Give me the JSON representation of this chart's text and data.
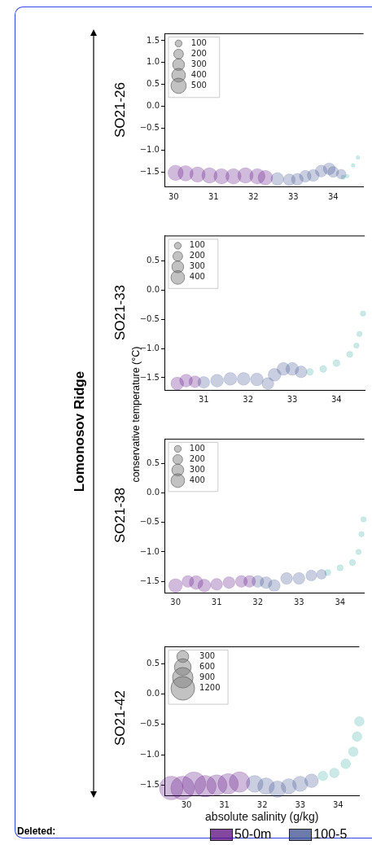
{
  "chart_data": [
    {
      "type": "bubble",
      "title": "SO21-26",
      "annotations": [
        "Lomonosov Ridge"
      ],
      "size_legend": [
        100,
        200,
        300,
        400,
        500
      ],
      "xlim": [
        29.77,
        34.76
      ],
      "xticks": [
        30,
        31,
        32,
        33,
        34
      ],
      "ylim": [
        -1.85,
        1.66
      ],
      "yticks": [
        {
          "value": -1.5,
          "label": "−1.5"
        },
        {
          "value": -1,
          "label": "−1.0"
        },
        {
          "value": -0.5,
          "label": "−0.5"
        },
        {
          "value": 0,
          "label": "0.0"
        },
        {
          "value": 0.5,
          "label": "0.5"
        },
        {
          "value": 1,
          "label": "1.0"
        },
        {
          "value": 1.5,
          "label": "1.5"
        }
      ],
      "series": [
        {
          "color": "#5b0a80",
          "x": [
            30.05,
            30.3,
            30.6,
            30.9,
            31.2,
            31.5,
            31.8,
            32.1,
            32.3
          ],
          "values": [
            -1.52,
            -1.53,
            -1.56,
            -1.58,
            -1.6,
            -1.6,
            -1.58,
            -1.6,
            -1.63
          ],
          "sizes": [
            500,
            500,
            500,
            500,
            500,
            500,
            500,
            500,
            450
          ]
        },
        {
          "color": "#3c4f8e",
          "x": [
            32.6,
            32.9,
            33.1,
            33.3,
            33.5,
            33.7,
            33.9,
            34.0,
            34.2
          ],
          "values": [
            -1.66,
            -1.68,
            -1.67,
            -1.6,
            -1.58,
            -1.48,
            -1.43,
            -1.5,
            -1.55
          ],
          "sizes": [
            350,
            300,
            300,
            300,
            300,
            300,
            300,
            250,
            200
          ]
        },
        {
          "color": "#45b5a8",
          "x": [
            34.25,
            34.35,
            34.5,
            34.62
          ],
          "values": [
            -1.62,
            -1.6,
            -1.35,
            -1.17
          ],
          "sizes": [
            40,
            30,
            30,
            30
          ]
        }
      ]
    },
    {
      "type": "bubble",
      "title": "SO21-33",
      "ylabel": "conservative temperature (°C)",
      "size_legend": [
        100,
        200,
        300,
        400
      ],
      "xlim": [
        30.11,
        34.64
      ],
      "xticks": [
        31,
        32,
        33,
        34
      ],
      "ylim": [
        -1.71,
        0.93
      ],
      "yticks": [
        {
          "value": -1.5,
          "label": "−1.5"
        },
        {
          "value": -1,
          "label": "−1.0"
        },
        {
          "value": -0.5,
          "label": "−0.5"
        },
        {
          "value": 0,
          "label": "0.0"
        },
        {
          "value": 0.5,
          "label": "0.5"
        }
      ],
      "series": [
        {
          "color": "#5b0a80",
          "x": [
            30.4,
            30.6,
            30.8
          ],
          "values": [
            -1.6,
            -1.55,
            -1.57
          ],
          "sizes": [
            350,
            350,
            300
          ]
        },
        {
          "color": "#3c4f8e",
          "x": [
            31.0,
            31.3,
            31.6,
            31.9,
            32.2,
            32.45,
            32.6,
            32.8,
            33.0,
            33.2
          ],
          "values": [
            -1.58,
            -1.55,
            -1.52,
            -1.52,
            -1.53,
            -1.6,
            -1.45,
            -1.35,
            -1.35,
            -1.4
          ],
          "sizes": [
            300,
            350,
            350,
            350,
            350,
            300,
            350,
            350,
            350,
            300
          ]
        },
        {
          "color": "#45b5a8",
          "x": [
            33.4,
            33.7,
            34.0,
            34.3,
            34.45,
            34.52,
            34.6
          ],
          "values": [
            -1.4,
            -1.35,
            -1.25,
            -1.1,
            -0.95,
            -0.75,
            -0.4
          ],
          "sizes": [
            100,
            100,
            100,
            80,
            60,
            60,
            60
          ]
        }
      ]
    },
    {
      "type": "bubble",
      "title": "SO21-38",
      "size_legend": [
        100,
        200,
        300,
        400
      ],
      "xlim": [
        29.73,
        34.59
      ],
      "xticks": [
        30,
        31,
        32,
        33,
        34
      ],
      "ylim": [
        -1.69,
        0.91
      ],
      "yticks": [
        {
          "value": -1.5,
          "label": "−1.5"
        },
        {
          "value": -1,
          "label": "−1.0"
        },
        {
          "value": -0.5,
          "label": "−0.5"
        },
        {
          "value": 0,
          "label": "0.0"
        },
        {
          "value": 0.5,
          "label": "0.5"
        }
      ],
      "series": [
        {
          "color": "#5b0a80",
          "x": [
            30.0,
            30.3,
            30.5,
            30.7,
            31.0,
            31.3,
            31.6,
            31.8
          ],
          "values": [
            -1.57,
            -1.5,
            -1.52,
            -1.57,
            -1.55,
            -1.52,
            -1.5,
            -1.5
          ],
          "sizes": [
            400,
            300,
            400,
            350,
            300,
            300,
            300,
            300
          ]
        },
        {
          "color": "#3c4f8e",
          "x": [
            32.0,
            32.2,
            32.4,
            32.7,
            33.0,
            33.3,
            33.55
          ],
          "values": [
            -1.5,
            -1.52,
            -1.57,
            -1.45,
            -1.45,
            -1.4,
            -1.38
          ],
          "sizes": [
            300,
            300,
            300,
            300,
            300,
            250,
            200
          ]
        },
        {
          "color": "#45b5a8",
          "x": [
            33.7,
            34.0,
            34.3,
            34.45,
            34.52,
            34.57
          ],
          "values": [
            -1.35,
            -1.27,
            -1.18,
            -1.0,
            -0.7,
            -0.45
          ],
          "sizes": [
            80,
            80,
            80,
            60,
            60,
            60
          ]
        }
      ]
    },
    {
      "type": "bubble",
      "title": "SO21-42",
      "xlabel": "absolute salinity (g/kg)",
      "annotations": [
        "Deleted:"
      ],
      "legend": "bottom",
      "size_legend": [
        300,
        600,
        900,
        1200
      ],
      "xlim": [
        29.42,
        34.56
      ],
      "xticks": [
        30,
        31,
        32,
        33,
        34
      ],
      "ylim": [
        -1.67,
        0.78
      ],
      "yticks": [
        {
          "value": -1.5,
          "label": "−1.5"
        },
        {
          "value": -1,
          "label": "−1.0"
        },
        {
          "value": -0.5,
          "label": "−0.5"
        },
        {
          "value": 0,
          "label": "0.0"
        },
        {
          "value": 0.5,
          "label": "0.5"
        }
      ],
      "series": [
        {
          "name": "50-0m",
          "color": "#5b0a80",
          "x": [
            29.6,
            29.9,
            30.2,
            30.5,
            30.8,
            31.1,
            31.4
          ],
          "values": [
            -1.55,
            -1.55,
            -1.48,
            -1.52,
            -1.5,
            -1.48,
            -1.45
          ],
          "sizes": [
            1200,
            1200,
            1200,
            1000,
            900,
            900,
            900
          ]
        },
        {
          "name": "100-5",
          "color": "#3c4f8e",
          "x": [
            31.8,
            32.1,
            32.4,
            32.7,
            33.0,
            33.3
          ],
          "values": [
            -1.48,
            -1.52,
            -1.57,
            -1.52,
            -1.48,
            -1.43
          ],
          "sizes": [
            600,
            600,
            600,
            500,
            500,
            400
          ]
        },
        {
          "color": "#45b5a8",
          "x": [
            33.6,
            33.9,
            34.2,
            34.4,
            34.5,
            34.56
          ],
          "values": [
            -1.35,
            -1.3,
            -1.15,
            -0.95,
            -0.7,
            -0.45
          ],
          "sizes": [
            200,
            200,
            200,
            200,
            200,
            200
          ]
        }
      ]
    }
  ]
}
